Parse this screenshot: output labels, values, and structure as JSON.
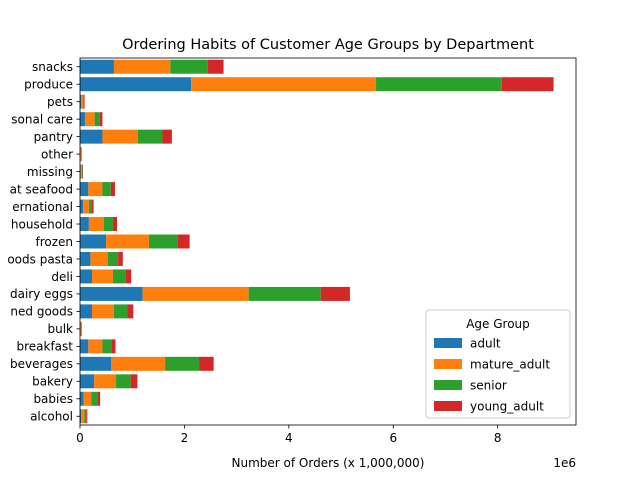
{
  "chart_data": {
    "type": "bar",
    "orientation": "horizontal",
    "stacked": true,
    "title": "Ordering Habits of Customer Age Groups by Department",
    "xlabel": "Number of Orders (x 1,000,000)",
    "ylabel": "",
    "offset_text": "1e6",
    "x_scale_multiplier": 1000000,
    "xlim": [
      0,
      9500000
    ],
    "xticks": [
      0,
      2000000,
      4000000,
      6000000,
      8000000
    ],
    "xtick_labels": [
      "0",
      "2",
      "4",
      "6",
      "8"
    ],
    "grid": false,
    "categories": [
      "alcohol",
      "babies",
      "bakery",
      "beverages",
      "breakfast",
      "bulk",
      "canned goods",
      "dairy eggs",
      "deli",
      "dry goods pasta",
      "frozen",
      "household",
      "international",
      "meat seafood",
      "missing",
      "other",
      "pantry",
      "personal care",
      "pets",
      "produce",
      "snacks"
    ],
    "category_tick_labels": [
      "alcohol",
      "babies",
      "bakery",
      "beverages",
      "breakfast",
      "bulk",
      "ned goods",
      "dairy eggs",
      "deli",
      "oods pasta",
      "frozen",
      "household",
      "ernational",
      "at seafood",
      "missing",
      "other",
      "pantry",
      "sonal care",
      "pets",
      "produce",
      "snacks"
    ],
    "series": [
      {
        "name": "adult",
        "color": "#1f77b4",
        "values": [
          25000,
          70000,
          270000,
          600000,
          160000,
          8000,
          230000,
          1200000,
          230000,
          200000,
          500000,
          170000,
          60000,
          160000,
          15000,
          8000,
          430000,
          100000,
          20000,
          2130000,
          650000
        ]
      },
      {
        "name": "mature_adult",
        "color": "#ff7f0e",
        "values": [
          60000,
          150000,
          420000,
          1030000,
          270000,
          15000,
          420000,
          2030000,
          400000,
          330000,
          820000,
          290000,
          110000,
          270000,
          20000,
          12000,
          680000,
          180000,
          40000,
          3540000,
          1080000
        ]
      },
      {
        "name": "senior",
        "color": "#2ca02c",
        "values": [
          35000,
          110000,
          280000,
          650000,
          170000,
          8000,
          260000,
          1380000,
          250000,
          200000,
          550000,
          170000,
          60000,
          160000,
          15000,
          8000,
          470000,
          100000,
          20000,
          2410000,
          720000
        ]
      },
      {
        "name": "young_adult",
        "color": "#d62728",
        "values": [
          20000,
          55000,
          130000,
          280000,
          80000,
          5000,
          110000,
          560000,
          100000,
          90000,
          230000,
          80000,
          30000,
          80000,
          8000,
          4000,
          180000,
          50000,
          10000,
          990000,
          300000
        ]
      }
    ],
    "legend": {
      "title": "Age Group",
      "placement": "lower-right"
    }
  }
}
